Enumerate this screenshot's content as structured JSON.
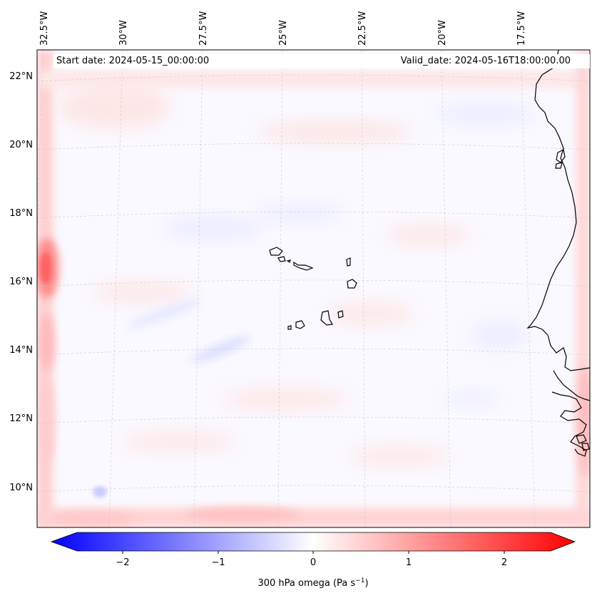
{
  "header": {
    "start_date": "Start date: 2024-05-15_00:00:00",
    "valid_date": "Valid_date: 2024-05-16T18:00:00.00"
  },
  "map": {
    "variable_label": "300 hPa omega (Pa s",
    "variable_unit_suffix": ")",
    "variable_unit_sup": "−1",
    "longitude_labels": [
      "32.5°W",
      "30°W",
      "27.5°W",
      "25°W",
      "22.5°W",
      "20°W",
      "17.5°W"
    ],
    "latitude_labels": [
      "22°N",
      "20°N",
      "18°N",
      "16°N",
      "14°N",
      "12°N",
      "10°N"
    ],
    "colorbar_ticks": [
      "−2",
      "−1",
      "0",
      "1",
      "2"
    ],
    "colormap": {
      "negative": "#0000ff",
      "neutral": "#ffffff",
      "positive": "#ff0000"
    },
    "coastline_color": "#000000"
  },
  "chart_data": {
    "type": "heatmap",
    "title": "",
    "colorbar_label": "300 hPa omega (Pa s^-1)",
    "colorbar_range": [
      -2.6,
      2.6
    ],
    "colorbar_ticks": [
      -2,
      -1,
      0,
      1,
      2
    ],
    "extend": "both",
    "lon_ticks": [
      -32.5,
      -30,
      -27.5,
      -25,
      -22.5,
      -20,
      -17.5
    ],
    "lat_ticks": [
      22,
      20,
      18,
      16,
      14,
      12,
      10
    ],
    "lon_range": [
      -33.5,
      -15.5
    ],
    "lat_range": [
      9,
      22.7
    ],
    "grid": true,
    "features": [
      {
        "name": "boundary maximum",
        "lon": -33.3,
        "lat": 16.4,
        "value": 1.2
      },
      {
        "name": "northern border band",
        "lat": 22.2,
        "value": 0.3
      },
      {
        "name": "southern border band",
        "lat": 9.3,
        "value": 0.4
      },
      {
        "name": "eastern border band",
        "lon": -15.8,
        "value": 0.5
      },
      {
        "name": "interior field",
        "value_range": [
          -0.3,
          0.3
        ]
      }
    ]
  }
}
